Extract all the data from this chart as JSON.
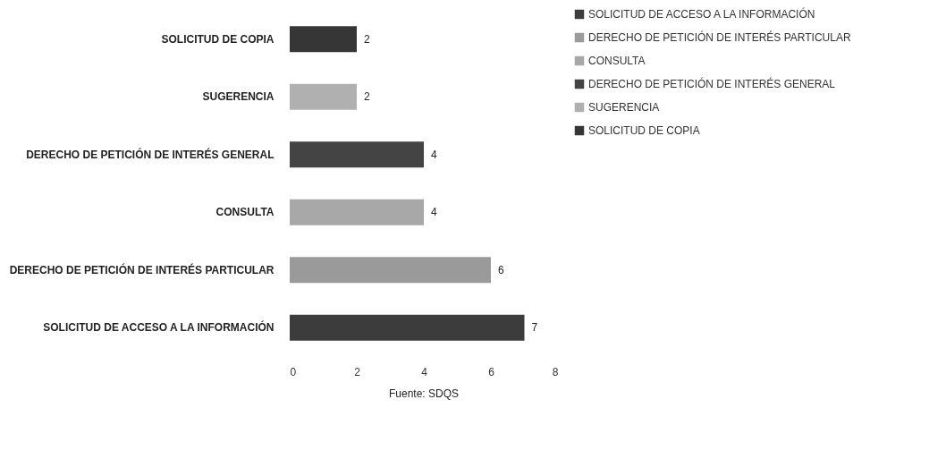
{
  "chart_data": {
    "type": "bar",
    "orientation": "horizontal",
    "categories": [
      "SOLICITUD DE COPIA",
      "SUGERENCIA",
      "DERECHO DE PETICIÓN DE INTERÉS GENERAL",
      "CONSULTA",
      "DERECHO DE PETICIÓN DE INTERÉS PARTICULAR",
      "SOLICITUD DE ACCESO A LA INFORMACIÓN"
    ],
    "series": [
      {
        "name": "SOLICITUD DE ACCESO A LA INFORMACIÓN",
        "color": "#3c3c3c",
        "values": [
          null,
          null,
          null,
          null,
          null,
          7
        ]
      },
      {
        "name": "DERECHO DE PETICIÓN DE INTERÉS PARTICULAR",
        "color": "#9a9a9a",
        "values": [
          null,
          null,
          null,
          null,
          6,
          null
        ]
      },
      {
        "name": "CONSULTA",
        "color": "#a8a8a8",
        "values": [
          null,
          null,
          null,
          4,
          null,
          null
        ]
      },
      {
        "name": "DERECHO DE PETICIÓN DE INTERÉS GENERAL",
        "color": "#444444",
        "values": [
          null,
          null,
          4,
          null,
          null,
          null
        ]
      },
      {
        "name": "SUGERENCIA",
        "color": "#b0b0b0",
        "values": [
          null,
          2,
          null,
          null,
          null,
          null
        ]
      },
      {
        "name": "SOLICITUD DE COPIA",
        "color": "#363636",
        "values": [
          2,
          null,
          null,
          null,
          null,
          null
        ]
      }
    ],
    "xlim": [
      0,
      8
    ],
    "xticks": [
      0,
      2,
      4,
      6,
      8
    ],
    "data_labels": true,
    "legend": "right",
    "annotations": [
      "Fuente: SDQS"
    ]
  }
}
